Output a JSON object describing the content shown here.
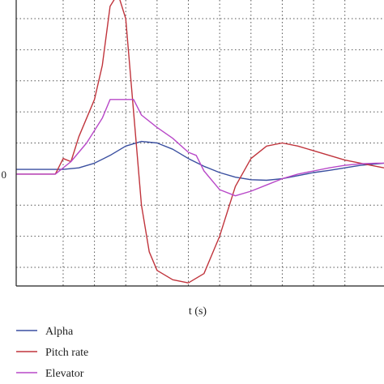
{
  "chart_data": {
    "type": "line",
    "title": "",
    "xlabel": "t (s)",
    "ylabel": "",
    "y_tick_labels": [
      {
        "value": 0,
        "label": "0"
      }
    ],
    "x_grid_lines": [
      0.4,
      0.8,
      1.2,
      1.6,
      2.0,
      2.4,
      2.8,
      3.2,
      3.6,
      4.0
    ],
    "y_grid_lines": [
      -3,
      -2,
      -1,
      1,
      2,
      3,
      4,
      5
    ],
    "xlim": [
      -0.2,
      4.5
    ],
    "ylim": [
      -3.6,
      5.6
    ],
    "grid": true,
    "legend_position": "bottom-left",
    "series": [
      {
        "name": "Alpha",
        "color": "#3a4fa0",
        "points": [
          [
            -0.2,
            0.15
          ],
          [
            0.4,
            0.15
          ],
          [
            0.6,
            0.2
          ],
          [
            0.8,
            0.35
          ],
          [
            1.0,
            0.6
          ],
          [
            1.2,
            0.9
          ],
          [
            1.4,
            1.05
          ],
          [
            1.6,
            1.0
          ],
          [
            1.8,
            0.8
          ],
          [
            2.0,
            0.5
          ],
          [
            2.2,
            0.25
          ],
          [
            2.4,
            0.05
          ],
          [
            2.6,
            -0.1
          ],
          [
            2.8,
            -0.18
          ],
          [
            3.0,
            -0.2
          ],
          [
            3.2,
            -0.15
          ],
          [
            3.4,
            -0.05
          ],
          [
            3.6,
            0.05
          ],
          [
            3.8,
            0.12
          ],
          [
            4.0,
            0.2
          ],
          [
            4.2,
            0.28
          ],
          [
            4.5,
            0.35
          ]
        ]
      },
      {
        "name": "Pitch rate",
        "color": "#c0343c",
        "points": [
          [
            -0.2,
            0.0
          ],
          [
            0.3,
            0.0
          ],
          [
            0.4,
            0.5
          ],
          [
            0.5,
            0.4
          ],
          [
            0.6,
            1.2
          ],
          [
            0.8,
            2.4
          ],
          [
            0.9,
            3.5
          ],
          [
            1.0,
            5.4
          ],
          [
            1.1,
            5.8
          ],
          [
            1.2,
            5.0
          ],
          [
            1.3,
            2.0
          ],
          [
            1.4,
            -1.0
          ],
          [
            1.5,
            -2.5
          ],
          [
            1.6,
            -3.1
          ],
          [
            1.8,
            -3.4
          ],
          [
            2.0,
            -3.5
          ],
          [
            2.2,
            -3.2
          ],
          [
            2.4,
            -2.0
          ],
          [
            2.6,
            -0.4
          ],
          [
            2.8,
            0.5
          ],
          [
            3.0,
            0.9
          ],
          [
            3.2,
            1.0
          ],
          [
            3.4,
            0.9
          ],
          [
            3.6,
            0.75
          ],
          [
            3.8,
            0.6
          ],
          [
            4.0,
            0.45
          ],
          [
            4.2,
            0.35
          ],
          [
            4.4,
            0.25
          ],
          [
            4.5,
            0.2
          ]
        ]
      },
      {
        "name": "Elevator",
        "color": "#b848c8",
        "points": [
          [
            -0.2,
            0.0
          ],
          [
            0.3,
            0.0
          ],
          [
            0.5,
            0.4
          ],
          [
            0.7,
            1.0
          ],
          [
            0.9,
            1.8
          ],
          [
            1.0,
            2.4
          ],
          [
            1.3,
            2.4
          ],
          [
            1.4,
            1.9
          ],
          [
            1.6,
            1.5
          ],
          [
            1.8,
            1.15
          ],
          [
            2.0,
            0.7
          ],
          [
            2.1,
            0.6
          ],
          [
            2.2,
            0.1
          ],
          [
            2.4,
            -0.5
          ],
          [
            2.6,
            -0.7
          ],
          [
            2.8,
            -0.55
          ],
          [
            3.0,
            -0.35
          ],
          [
            3.2,
            -0.15
          ],
          [
            3.4,
            0.0
          ],
          [
            3.6,
            0.1
          ],
          [
            3.8,
            0.2
          ],
          [
            4.0,
            0.28
          ],
          [
            4.2,
            0.33
          ],
          [
            4.4,
            0.35
          ],
          [
            4.5,
            0.35
          ]
        ]
      }
    ]
  }
}
